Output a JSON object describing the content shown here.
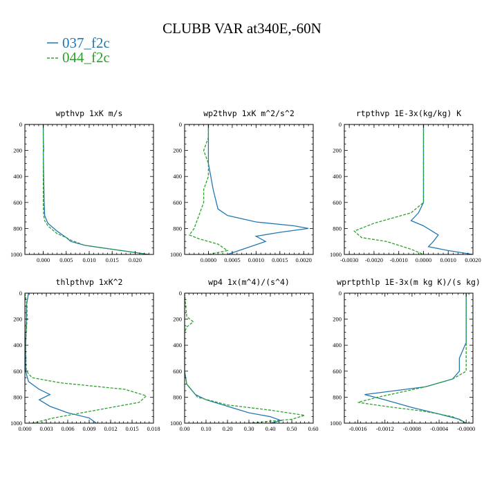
{
  "title": "CLUBB VAR at340E,-60N",
  "legend": [
    {
      "label": "037_f2c",
      "color": "#1f77b4",
      "dash": "solid"
    },
    {
      "label": "044_f2c",
      "color": "#2ca02c",
      "dash": "dashed"
    }
  ],
  "chart_data": [
    {
      "type": "line",
      "title": "wpthvp  1xK m/s",
      "xlim": [
        -0.004,
        0.024
      ],
      "ylim": [
        1000,
        0
      ],
      "yticks": [
        "0",
        "200",
        "400",
        "600",
        "800",
        "1000"
      ],
      "ytick_values": [
        0,
        200,
        400,
        600,
        800,
        1000
      ],
      "xticks": [
        "0.000",
        "0.005",
        "0.010",
        "0.015",
        "0.020"
      ],
      "xtick_values": [
        0,
        0.005,
        0.01,
        0.015,
        0.02
      ],
      "series": [
        {
          "name": "037_f2c",
          "points": [
            [
              0.0,
              0
            ],
            [
              0.0,
              100
            ],
            [
              0.0001,
              200
            ],
            [
              0.0,
              220
            ],
            [
              0.0001,
              400
            ],
            [
              0.0002,
              600
            ],
            [
              0.0003,
              700
            ],
            [
              0.001,
              760
            ],
            [
              0.003,
              820
            ],
            [
              0.005,
              870
            ],
            [
              0.006,
              900
            ],
            [
              0.009,
              930
            ],
            [
              0.015,
              960
            ],
            [
              0.023,
              1000
            ]
          ]
        },
        {
          "name": "044_f2c",
          "points": [
            [
              0.0,
              0
            ],
            [
              0.0,
              100
            ],
            [
              0.0,
              200
            ],
            [
              0.0,
              400
            ],
            [
              0.0,
              600
            ],
            [
              0.0001,
              700
            ],
            [
              0.0003,
              740
            ],
            [
              0.001,
              780
            ],
            [
              0.003,
              840
            ],
            [
              0.005,
              870
            ],
            [
              0.006,
              890
            ],
            [
              0.009,
              930
            ],
            [
              0.015,
              960
            ],
            [
              0.023,
              1000
            ]
          ]
        }
      ]
    },
    {
      "type": "line",
      "title": "wp2thvp  1xK m^2/s^2",
      "xlim": [
        -0.0005,
        0.0022
      ],
      "ylim": [
        1000,
        0
      ],
      "yticks": [
        "0",
        "200",
        "400",
        "600",
        "800",
        "1000"
      ],
      "ytick_values": [
        0,
        200,
        400,
        600,
        800,
        1000
      ],
      "xticks": [
        "0.0000",
        "0.0005",
        "0.0010",
        "0.0015",
        "0.0020"
      ],
      "xtick_values": [
        0,
        0.0005,
        0.001,
        0.0015,
        0.002
      ],
      "series": [
        {
          "name": "037_f2c",
          "points": [
            [
              0.0,
              0
            ],
            [
              0.0,
              100
            ],
            [
              0.0,
              200
            ],
            [
              0.0,
              300
            ],
            [
              0.0001,
              500
            ],
            [
              0.0002,
              650
            ],
            [
              0.0004,
              700
            ],
            [
              0.001,
              750
            ],
            [
              0.0018,
              780
            ],
            [
              0.0021,
              800
            ],
            [
              0.0015,
              830
            ],
            [
              0.001,
              860
            ],
            [
              0.0012,
              900
            ],
            [
              0.0008,
              950
            ],
            [
              0.0004,
              1000
            ]
          ]
        },
        {
          "name": "044_f2c",
          "points": [
            [
              0.0,
              0
            ],
            [
              0.0,
              100
            ],
            [
              -0.0001,
              200
            ],
            [
              0.0,
              300
            ],
            [
              0.0,
              400
            ],
            [
              -0.0001,
              500
            ],
            [
              -0.0001,
              600
            ],
            [
              -0.0002,
              700
            ],
            [
              -0.0003,
              800
            ],
            [
              -0.0004,
              850
            ],
            [
              -0.0002,
              880
            ],
            [
              0.0002,
              920
            ],
            [
              0.0004,
              970
            ],
            [
              0.0,
              1000
            ]
          ]
        }
      ]
    },
    {
      "type": "line",
      "title": "rtpthvp  1E-3x(kg/kg) K",
      "xlim": [
        -0.0032,
        0.002
      ],
      "ylim": [
        1000,
        0
      ],
      "yticks": [
        "0",
        "200",
        "400",
        "600",
        "800",
        "1000"
      ],
      "ytick_values": [
        0,
        200,
        400,
        600,
        800,
        1000
      ],
      "xticks": [
        "-0.0030",
        "-0.0020",
        "-0.0010",
        "0.0000",
        "0.0010",
        "0.0020"
      ],
      "xtick_values": [
        -0.003,
        -0.002,
        -0.001,
        0,
        0.001,
        0.002
      ],
      "series": [
        {
          "name": "037_f2c",
          "points": [
            [
              0.0,
              0
            ],
            [
              0.0,
              200
            ],
            [
              0.0,
              400
            ],
            [
              0.0,
              600
            ],
            [
              -0.0002,
              680
            ],
            [
              -0.0005,
              740
            ],
            [
              0.0,
              780
            ],
            [
              0.0006,
              850
            ],
            [
              0.0004,
              900
            ],
            [
              0.0002,
              940
            ],
            [
              0.001,
              970
            ],
            [
              0.002,
              1000
            ]
          ]
        },
        {
          "name": "044_f2c",
          "points": [
            [
              0.0,
              0
            ],
            [
              0.0,
              200
            ],
            [
              0.0,
              400
            ],
            [
              0.0,
              600
            ],
            [
              -0.0005,
              680
            ],
            [
              -0.002,
              760
            ],
            [
              -0.0028,
              820
            ],
            [
              -0.0025,
              870
            ],
            [
              -0.0015,
              900
            ],
            [
              -0.001,
              930
            ],
            [
              -0.0005,
              960
            ],
            [
              0.0,
              1000
            ]
          ]
        }
      ]
    },
    {
      "type": "line",
      "title": "thlpthvp  1xK^2",
      "xlim": [
        0.0,
        0.018
      ],
      "ylim": [
        1000,
        0
      ],
      "yticks": [
        "0",
        "200",
        "400",
        "600",
        "800",
        "1000"
      ],
      "ytick_values": [
        0,
        200,
        400,
        600,
        800,
        1000
      ],
      "xticks": [
        "0.000",
        "0.003",
        "0.006",
        "0.009",
        "0.012",
        "0.015",
        "0.018"
      ],
      "xtick_values": [
        0,
        0.003,
        0.006,
        0.009,
        0.012,
        0.015,
        0.018
      ],
      "series": [
        {
          "name": "037_f2c",
          "points": [
            [
              0.0005,
              0
            ],
            [
              0.0002,
              100
            ],
            [
              0.0002,
              200
            ],
            [
              0.0001,
              400
            ],
            [
              0.0001,
              600
            ],
            [
              0.0005,
              680
            ],
            [
              0.002,
              740
            ],
            [
              0.0035,
              780
            ],
            [
              0.002,
              820
            ],
            [
              0.0035,
              870
            ],
            [
              0.006,
              920
            ],
            [
              0.009,
              960
            ],
            [
              0.01,
              1000
            ]
          ]
        },
        {
          "name": "044_f2c",
          "points": [
            [
              0.0,
              0
            ],
            [
              0.0003,
              100
            ],
            [
              0.0003,
              200
            ],
            [
              0.0001,
              400
            ],
            [
              0.0002,
              600
            ],
            [
              0.001,
              650
            ],
            [
              0.005,
              690
            ],
            [
              0.014,
              740
            ],
            [
              0.017,
              790
            ],
            [
              0.016,
              840
            ],
            [
              0.01,
              900
            ],
            [
              0.004,
              960
            ],
            [
              0.001,
              1000
            ]
          ]
        }
      ]
    },
    {
      "type": "line",
      "title": "wp4  1x(m^4)/(s^4)",
      "xlim": [
        0.0,
        0.6
      ],
      "ylim": [
        1000,
        0
      ],
      "yticks": [
        "0",
        "200",
        "400",
        "600",
        "800",
        "1000"
      ],
      "ytick_values": [
        0,
        200,
        400,
        600,
        800,
        1000
      ],
      "xticks": [
        "0.00",
        "0.10",
        "0.20",
        "0.30",
        "0.40",
        "0.50",
        "0.60"
      ],
      "xtick_values": [
        0,
        0.1,
        0.2,
        0.3,
        0.4,
        0.5,
        0.6
      ],
      "series": [
        {
          "name": "037_f2c",
          "points": [
            [
              0.0,
              0
            ],
            [
              0.0,
              200
            ],
            [
              0.0,
              400
            ],
            [
              0.0,
              600
            ],
            [
              0.01,
              700
            ],
            [
              0.05,
              780
            ],
            [
              0.1,
              820
            ],
            [
              0.2,
              870
            ],
            [
              0.3,
              920
            ],
            [
              0.4,
              950
            ],
            [
              0.45,
              980
            ],
            [
              0.4,
              1000
            ]
          ]
        },
        {
          "name": "044_f2c",
          "points": [
            [
              0.0,
              0
            ],
            [
              0.01,
              180
            ],
            [
              0.04,
              220
            ],
            [
              0.01,
              260
            ],
            [
              0.0,
              300
            ],
            [
              0.0,
              600
            ],
            [
              0.01,
              700
            ],
            [
              0.06,
              800
            ],
            [
              0.2,
              860
            ],
            [
              0.4,
              900
            ],
            [
              0.56,
              940
            ],
            [
              0.5,
              970
            ],
            [
              0.3,
              1000
            ]
          ]
        }
      ]
    },
    {
      "type": "line",
      "title": "wprtpthlp  1E-3x(m kg K)/(s kg)",
      "xlim": [
        -0.0018,
        0.0001
      ],
      "ylim": [
        1000,
        0
      ],
      "yticks": [
        "0",
        "200",
        "400",
        "600",
        "800",
        "1000"
      ],
      "ytick_values": [
        0,
        200,
        400,
        600,
        800,
        1000
      ],
      "xticks": [
        "-0.0016",
        "-0.0012",
        "-0.0008",
        "-0.0004",
        "-0.0000"
      ],
      "xtick_values": [
        -0.0016,
        -0.0012,
        -0.0008,
        -0.0004,
        0
      ],
      "series": [
        {
          "name": "037_f2c",
          "points": [
            [
              0.0,
              0
            ],
            [
              0.0,
              200
            ],
            [
              0.0,
              380
            ],
            [
              -0.0001,
              500
            ],
            [
              -0.0001,
              600
            ],
            [
              -0.0002,
              660
            ],
            [
              -0.0006,
              720
            ],
            [
              -0.0015,
              780
            ],
            [
              -0.0012,
              820
            ],
            [
              -0.0008,
              880
            ],
            [
              -0.0004,
              930
            ],
            [
              -0.0001,
              970
            ],
            [
              0.0,
              1000
            ]
          ]
        },
        {
          "name": "044_f2c",
          "points": [
            [
              0.0,
              0
            ],
            [
              0.0,
              200
            ],
            [
              0.0,
              400
            ],
            [
              0.0,
              600
            ],
            [
              -0.0002,
              660
            ],
            [
              -0.0006,
              720
            ],
            [
              -0.0013,
              800
            ],
            [
              -0.0016,
              840
            ],
            [
              -0.0012,
              870
            ],
            [
              -0.0006,
              910
            ],
            [
              -0.0002,
              950
            ],
            [
              0.0,
              1000
            ]
          ]
        }
      ]
    }
  ]
}
